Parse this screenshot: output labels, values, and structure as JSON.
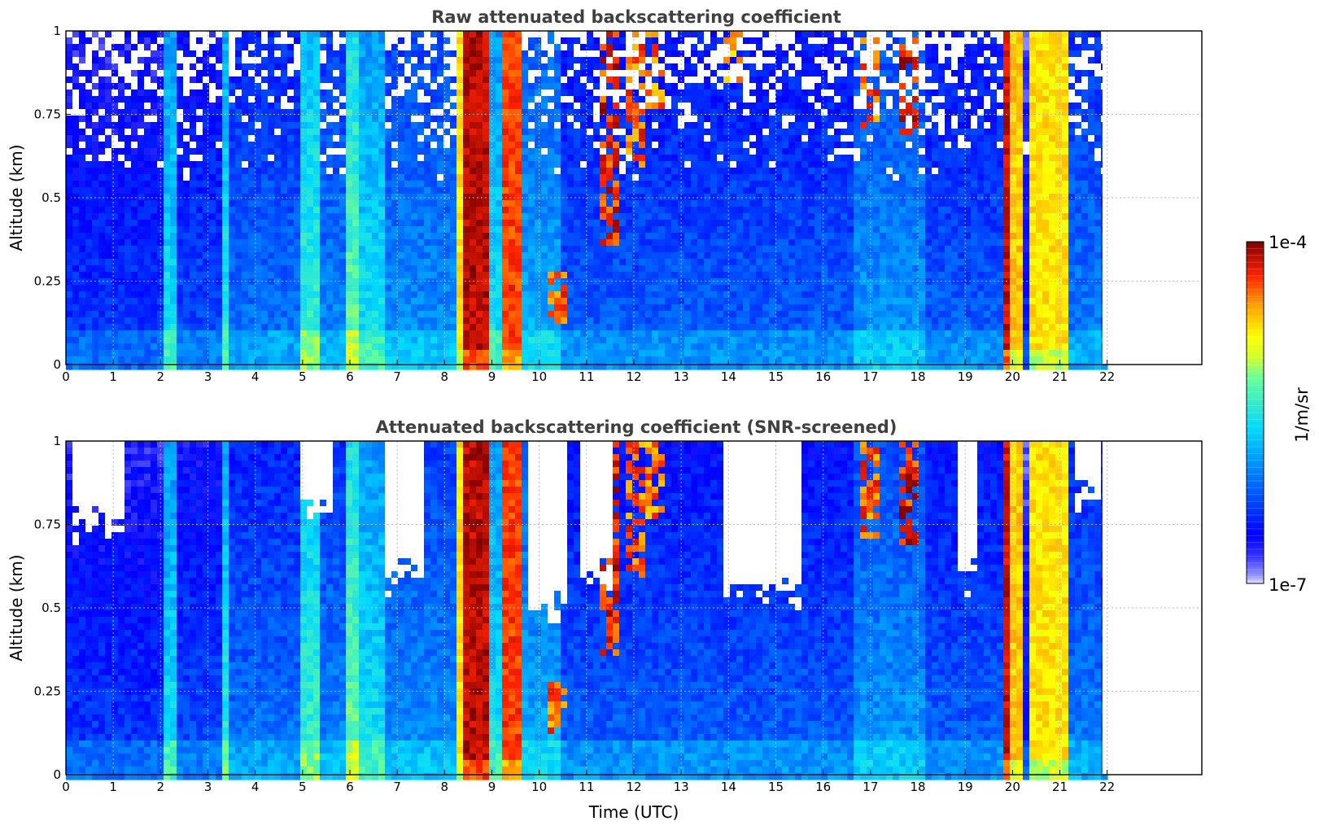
{
  "chart_data": [
    {
      "type": "heatmap",
      "title": "Raw attenuated backscattering coefficient",
      "xlabel": "",
      "ylabel": "Altitude (km)",
      "xlim": [
        0,
        24
      ],
      "ylim": [
        0,
        1
      ],
      "xticks": [
        0,
        1,
        2,
        3,
        4,
        5,
        6,
        7,
        8,
        9,
        10,
        11,
        12,
        13,
        14,
        15,
        16,
        17,
        18,
        19,
        20,
        21,
        22
      ],
      "yticks": [
        0,
        0.25,
        0.5,
        0.75,
        1
      ],
      "ytick_labels": [
        "0",
        "0.25",
        "0.5",
        "0.75",
        "1"
      ],
      "grid": true,
      "data_end_time": 21.9,
      "screened": false,
      "bands": [
        {
          "start": 0.0,
          "end": 2.1,
          "level": 1.6
        },
        {
          "start": 2.1,
          "end": 2.35,
          "level": 3.4
        },
        {
          "start": 2.35,
          "end": 3.3,
          "level": 1.8
        },
        {
          "start": 3.3,
          "end": 3.5,
          "level": 3.6
        },
        {
          "start": 3.5,
          "end": 4.9,
          "level": 2.2
        },
        {
          "start": 4.9,
          "end": 5.4,
          "level": 3.8
        },
        {
          "start": 5.4,
          "end": 5.9,
          "level": 2.4
        },
        {
          "start": 5.9,
          "end": 6.2,
          "level": 4.2
        },
        {
          "start": 6.2,
          "end": 6.7,
          "level": 3.4
        },
        {
          "start": 6.7,
          "end": 8.2,
          "level": 2.5
        },
        {
          "start": 8.2,
          "end": 8.4,
          "level": 5.2
        },
        {
          "start": 8.4,
          "end": 9.0,
          "level": 6.7
        },
        {
          "start": 9.0,
          "end": 9.15,
          "level": 3.4
        },
        {
          "start": 9.15,
          "end": 9.6,
          "level": 6.2
        },
        {
          "start": 9.6,
          "end": 10.4,
          "level": 2.8
        },
        {
          "start": 10.4,
          "end": 16.7,
          "level": 2.0
        },
        {
          "start": 16.7,
          "end": 18.2,
          "level": 2.6
        },
        {
          "start": 18.2,
          "end": 19.8,
          "level": 2.0
        },
        {
          "start": 19.8,
          "end": 19.95,
          "level": 6.6
        },
        {
          "start": 19.95,
          "end": 20.2,
          "level": 5.4
        },
        {
          "start": 20.2,
          "end": 20.3,
          "level": 1.4
        },
        {
          "start": 20.3,
          "end": 21.2,
          "level": 5.2
        },
        {
          "start": 21.2,
          "end": 21.9,
          "level": 2.3
        }
      ],
      "cloud_features": [
        {
          "time": 10.4,
          "base_km": 0.12,
          "top_km": 0.28,
          "level": 6.0
        },
        {
          "time": 11.5,
          "base_km": 0.35,
          "top_km": 1.0,
          "level": 6.4
        },
        {
          "time": 12.0,
          "base_km": 0.6,
          "top_km": 1.0,
          "level": 6.0
        },
        {
          "time": 12.5,
          "base_km": 0.75,
          "top_km": 1.0,
          "level": 5.8
        },
        {
          "time": 14.1,
          "base_km": 0.85,
          "top_km": 1.0,
          "level": 5.6
        },
        {
          "time": 17.0,
          "base_km": 0.7,
          "top_km": 1.0,
          "level": 6.0
        },
        {
          "time": 17.8,
          "base_km": 0.68,
          "top_km": 1.0,
          "level": 6.4
        }
      ]
    },
    {
      "type": "heatmap",
      "title": "Attenuated backscattering coefficient (SNR-screened)",
      "xlabel": "Time (UTC)",
      "ylabel": "Altitude (km)",
      "xlim": [
        0,
        24
      ],
      "ylim": [
        0,
        1
      ],
      "xticks": [
        0,
        1,
        2,
        3,
        4,
        5,
        6,
        7,
        8,
        9,
        10,
        11,
        12,
        13,
        14,
        15,
        16,
        17,
        18,
        19,
        20,
        21,
        22
      ],
      "yticks": [
        0,
        0.25,
        0.5,
        0.75,
        1
      ],
      "ytick_labels": [
        "0",
        "0.25",
        "0.5",
        "0.75",
        "1"
      ],
      "grid": true,
      "data_end_time": 21.9,
      "screened": true,
      "masked_regions": [
        {
          "start": 0.1,
          "end": 1.3,
          "base_km": 0.75
        },
        {
          "start": 5.0,
          "end": 5.6,
          "base_km": 0.8
        },
        {
          "start": 6.7,
          "end": 7.5,
          "base_km": 0.6
        },
        {
          "start": 9.7,
          "end": 10.6,
          "base_km": 0.5
        },
        {
          "start": 10.8,
          "end": 11.6,
          "base_km": 0.6
        },
        {
          "start": 13.9,
          "end": 15.6,
          "base_km": 0.55
        },
        {
          "start": 18.8,
          "end": 19.3,
          "base_km": 0.6
        },
        {
          "start": 21.3,
          "end": 21.9,
          "base_km": 0.85
        }
      ]
    }
  ],
  "colorbar": {
    "label": "1/m/sr",
    "max_label": "1e-4",
    "min_label": "1e-7",
    "colormap": "jet",
    "levels": 50
  }
}
